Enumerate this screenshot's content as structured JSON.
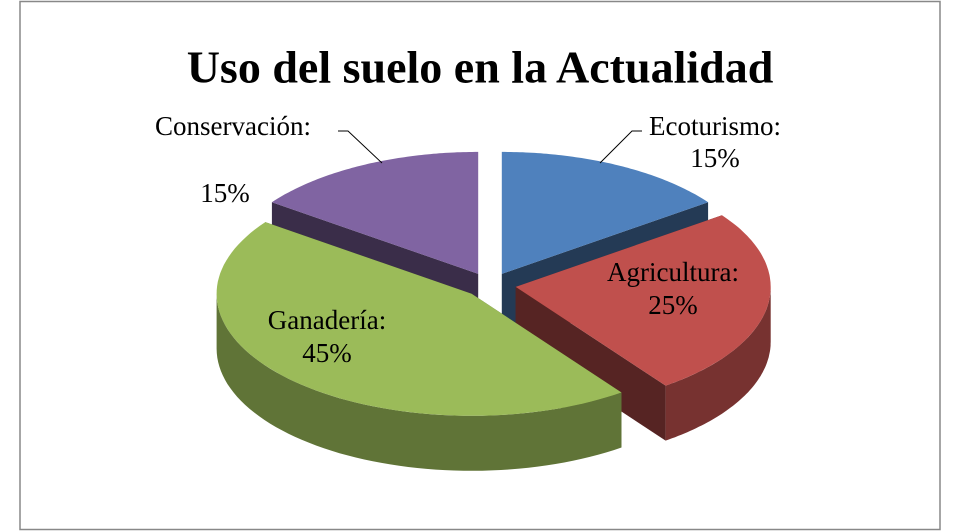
{
  "chart_data": {
    "type": "pie",
    "title": "Uso del suelo en la Actualidad",
    "categories": [
      "Ecoturismo:",
      "Agricultura:",
      "Ganadería:",
      "Conservación:"
    ],
    "values": [
      15,
      25,
      45,
      15
    ],
    "value_labels": [
      "15%",
      "25%",
      "45%",
      "15%"
    ],
    "colors": [
      "#4f81bd",
      "#c0504d",
      "#9bbb59",
      "#8064a2"
    ]
  }
}
